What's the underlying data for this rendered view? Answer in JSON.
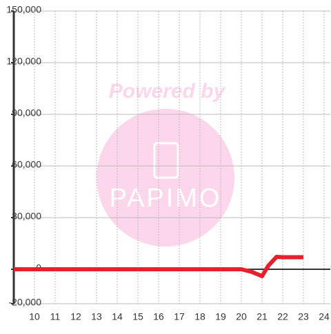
{
  "chart_data": {
    "type": "line",
    "watermark": {
      "line1": "Powered by",
      "line2": "PAPIMO"
    },
    "x": [
      9,
      10,
      11,
      12,
      13,
      14,
      15,
      16,
      17,
      18,
      19,
      20,
      20.5,
      21,
      21.3,
      21.7,
      22,
      23
    ],
    "series": [
      {
        "color": "#e8202e",
        "values": [
          0,
          0,
          0,
          0,
          0,
          0,
          0,
          0,
          0,
          0,
          0,
          0,
          -1500,
          -4000,
          2000,
          7200,
          7000,
          7000
        ]
      }
    ],
    "xlim": [
      9,
      24.3
    ],
    "xticks": [
      10,
      11,
      12,
      13,
      14,
      15,
      16,
      17,
      18,
      19,
      20,
      21,
      22,
      23,
      24
    ],
    "ylim": [
      -20000,
      150000
    ],
    "yticks": [
      {
        "value": -20000,
        "label": "-20,000"
      },
      0,
      {
        "value": 30000,
        "label": "30,000"
      },
      {
        "value": 60000,
        "label": "60,000"
      },
      {
        "value": 90000,
        "label": "90,000"
      },
      {
        "value": 120000,
        "label": "120,000"
      },
      {
        "value": 150000,
        "label": "150,000"
      }
    ],
    "grid": true
  }
}
